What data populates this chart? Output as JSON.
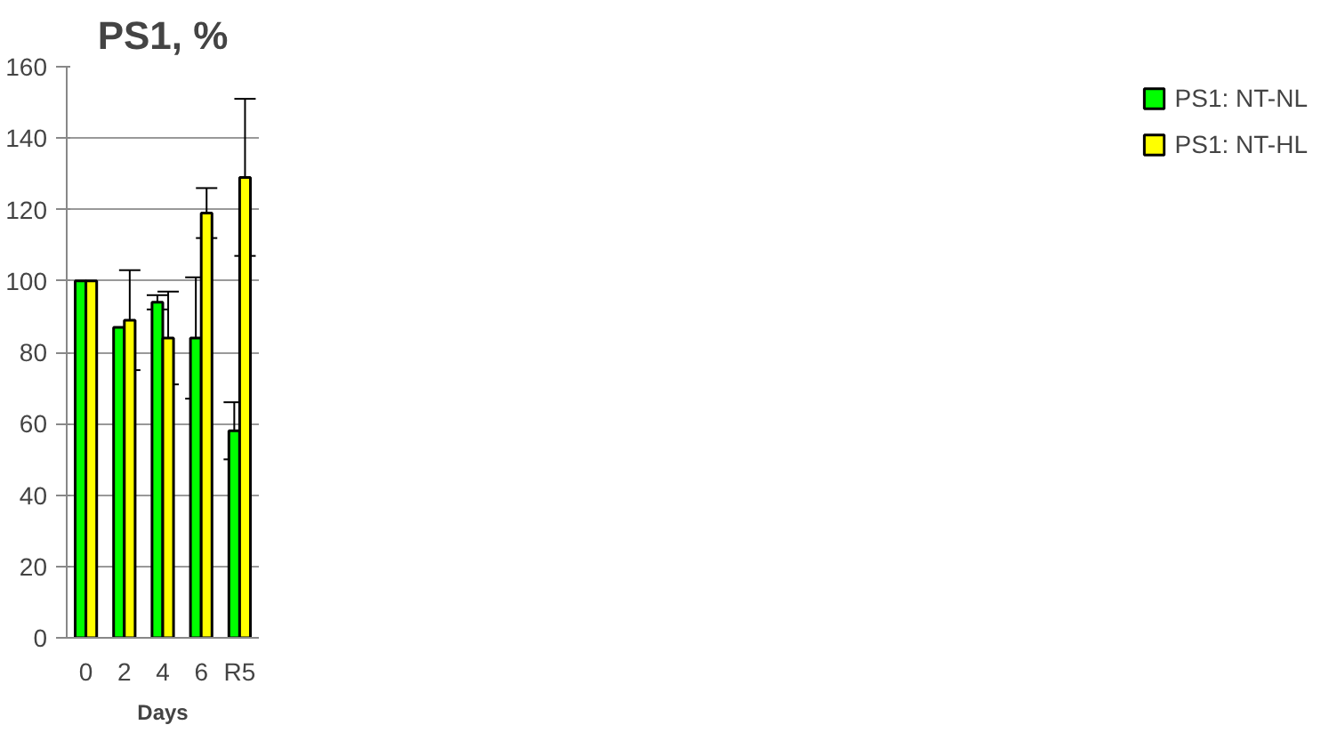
{
  "chart_data": {
    "type": "bar",
    "title": "PS1, %",
    "xlabel": "Days",
    "categories": [
      "0",
      "2",
      "4",
      "6",
      "R5"
    ],
    "series": [
      {
        "name": "PS1: NT-NL",
        "color": "#00ff00",
        "values": [
          100,
          87,
          94,
          84,
          58
        ],
        "errors": [
          null,
          null,
          2,
          17,
          8
        ]
      },
      {
        "name": "PS1: NT-HL",
        "color": "#ffff00",
        "values": [
          100,
          89,
          84,
          119,
          129
        ],
        "errors": [
          null,
          14,
          13,
          7,
          22
        ]
      }
    ],
    "ylim": [
      0,
      160
    ],
    "yticks": [
      0,
      20,
      40,
      60,
      80,
      100,
      120,
      140,
      160
    ],
    "grid": "y",
    "legend": "right"
  }
}
